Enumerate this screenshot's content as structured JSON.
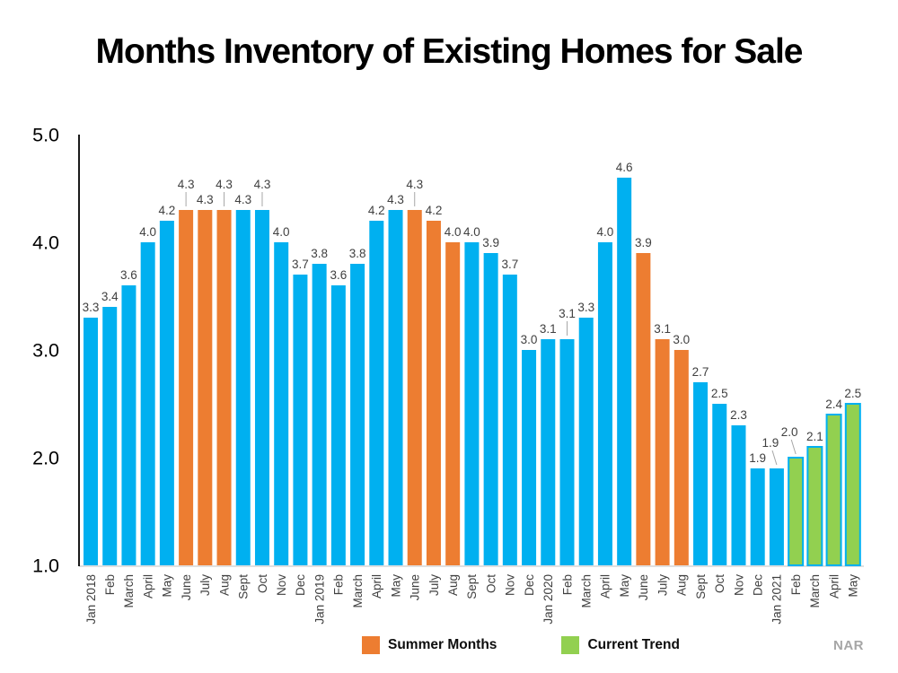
{
  "title": "Months Inventory of Existing Homes for Sale",
  "source_label": "NAR",
  "legend": {
    "summer": {
      "label": "Summer Months",
      "color": "#ED7D31"
    },
    "trend": {
      "label": "Current Trend",
      "color": "#92D050"
    }
  },
  "colors": {
    "blue": "#00B0F0",
    "orange": "#ED7D31",
    "green": "#92D050",
    "green_border": "#00B0F0",
    "value_label": "#404040",
    "tick_label": "#000000",
    "axis_line": "#000000",
    "baseline": "#d6d6d6",
    "leader_line": "#a6a6a6"
  },
  "chart_data": {
    "type": "bar",
    "title": "Months Inventory of Existing Homes for Sale",
    "xlabel": "",
    "ylabel": "",
    "ylim": [
      1.0,
      5.0
    ],
    "y_ticks": [
      5.0,
      4.0,
      3.0,
      2.0,
      1.0
    ],
    "y_tick_labels": [
      "5.0",
      "4.0",
      "3.0",
      "2.0",
      "1.0"
    ],
    "grid": false,
    "legend_position": "bottom",
    "legend_entries": [
      "Summer Months",
      "Current Trend"
    ],
    "categories": [
      "Jan 2018",
      "Feb",
      "March",
      "April",
      "May",
      "June",
      "July",
      "Aug",
      "Sept",
      "Oct",
      "Nov",
      "Dec",
      "Jan 2019",
      "Feb",
      "March",
      "April",
      "May",
      "June",
      "July",
      "Aug",
      "Sept",
      "Oct",
      "Nov",
      "Dec",
      "Jan 2020",
      "Feb",
      "March",
      "April",
      "May",
      "June",
      "July",
      "Aug",
      "Sept",
      "Oct",
      "Nov",
      "Dec",
      "Jan 2021",
      "Feb",
      "March",
      "April",
      "May"
    ],
    "values": [
      3.3,
      3.4,
      3.6,
      4.0,
      4.2,
      4.3,
      4.3,
      4.3,
      4.3,
      4.3,
      4.0,
      3.7,
      3.8,
      3.6,
      3.8,
      4.2,
      4.3,
      4.3,
      4.2,
      4.0,
      4.0,
      3.9,
      3.7,
      3.0,
      3.1,
      3.1,
      3.3,
      4.0,
      4.6,
      3.9,
      3.1,
      3.0,
      2.7,
      2.5,
      2.3,
      1.9,
      1.9,
      2.0,
      2.1,
      2.4,
      2.5
    ],
    "groups": [
      "blue",
      "blue",
      "blue",
      "blue",
      "blue",
      "orange",
      "orange",
      "orange",
      "blue",
      "blue",
      "blue",
      "blue",
      "blue",
      "blue",
      "blue",
      "blue",
      "blue",
      "orange",
      "orange",
      "orange",
      "blue",
      "blue",
      "blue",
      "blue",
      "blue",
      "blue",
      "blue",
      "blue",
      "blue",
      "orange",
      "orange",
      "orange",
      "blue",
      "blue",
      "blue",
      "blue",
      "blue",
      "green",
      "green",
      "green",
      "green"
    ],
    "raised_label_indices": [
      5,
      7,
      9,
      17,
      25,
      36,
      37
    ],
    "series_note": "blue = regular months, orange = Summer Months, green = Current Trend"
  }
}
